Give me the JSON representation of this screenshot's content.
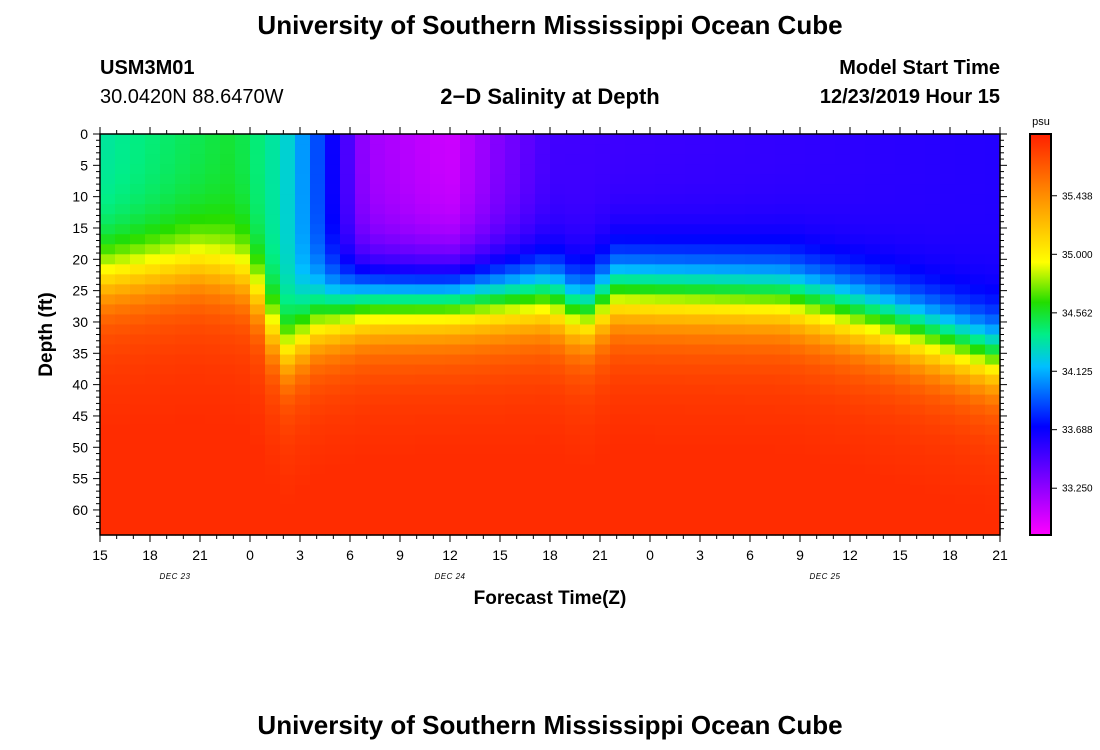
{
  "page": {
    "title": "University of Southern Mississippi Ocean Cube",
    "footer_title": "University of Southern Mississippi Ocean Cube"
  },
  "header": {
    "station_id": "USM3M01",
    "coordinates": "30.0420N 88.6470W",
    "model_start_label": "Model Start Time",
    "model_start_value": "12/23/2019 Hour 15"
  },
  "chart_data": {
    "type": "heatmap",
    "title": "2−D Salinity at Depth",
    "xlabel": "Forecast Time(Z)",
    "ylabel": "Depth (ft)",
    "x_range_hours": [
      0,
      54
    ],
    "x_tick_labels": [
      "15",
      "18",
      "21",
      "0",
      "3",
      "6",
      "9",
      "12",
      "15",
      "18",
      "21",
      "0",
      "3",
      "6",
      "9",
      "12",
      "15",
      "18",
      "21"
    ],
    "date_labels": [
      {
        "label": "DEC 23",
        "hour": 4.5
      },
      {
        "label": "DEC 24",
        "hour": 21
      },
      {
        "label": "DEC 25",
        "hour": 43.5
      }
    ],
    "ylim": [
      0,
      64
    ],
    "y_ticks": [
      0,
      5,
      10,
      15,
      20,
      25,
      30,
      35,
      40,
      45,
      50,
      55,
      60
    ],
    "colorbar": {
      "unit": "psu",
      "range": [
        32.9,
        35.9
      ],
      "ticks": [
        "35.438",
        "35.000",
        "34.562",
        "34.125",
        "33.688",
        "33.250"
      ],
      "tick_values": [
        35.438,
        35.0,
        34.562,
        34.125,
        33.688,
        33.25
      ]
    },
    "halocline_depth_ft": [
      [
        0,
        23
      ],
      [
        6,
        21
      ],
      [
        9,
        23
      ],
      [
        11,
        35
      ],
      [
        13,
        30
      ],
      [
        16,
        27
      ],
      [
        27,
        26
      ],
      [
        29,
        29
      ],
      [
        31,
        25
      ],
      [
        41,
        26
      ],
      [
        47,
        30
      ],
      [
        54,
        36
      ]
    ],
    "surface_salinity_psu": [
      [
        0,
        34.35
      ],
      [
        8,
        34.55
      ],
      [
        11,
        34.3
      ],
      [
        13,
        33.9
      ],
      [
        16,
        33.2
      ],
      [
        21,
        33.05
      ],
      [
        24,
        33.3
      ],
      [
        27,
        33.5
      ],
      [
        41,
        33.55
      ],
      [
        54,
        33.6
      ]
    ],
    "bottom_salinity_psu": 35.8
  }
}
